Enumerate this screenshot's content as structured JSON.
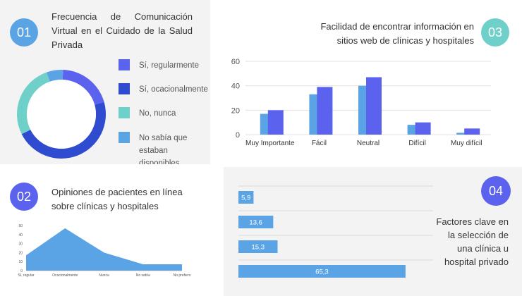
{
  "colors": {
    "blue_dark": "#2f4bd0",
    "blue_mid": "#5a62ee",
    "blue_light": "#5aa4e6",
    "teal": "#6fd0c9",
    "badge_blue": "#5aa4e6",
    "badge_indigo": "#5a62ee",
    "badge_teal": "#6fd0c9"
  },
  "panel1": {
    "badge": "01",
    "title": "Frecuencia de Comunicación Virtual en el Cuidado de la Salud Privada"
  },
  "panel2": {
    "badge": "02",
    "title": "Opiniones de pacientes en línea sobre clínicas y hospitales"
  },
  "panel3": {
    "badge": "03",
    "title": "Facilidad de encontrar información en sitios web de clínicas y hospitales"
  },
  "panel4": {
    "badge": "04",
    "title": "Factores clave en la selección de una clínica u hospital privado"
  },
  "chart_data": [
    {
      "type": "pie",
      "donut": true,
      "slices": [
        {
          "label": "Sí, regularmente",
          "value": 20,
          "color": "#5a62ee"
        },
        {
          "label": "Sí, ocacionalmente",
          "value": 47,
          "color": "#2f4bd0"
        },
        {
          "label": "No, nunca",
          "value": 27,
          "color": "#6fd0c9"
        },
        {
          "label": "No sabía que estaban disponibles",
          "value": 6,
          "color": "#5aa4e6"
        }
      ],
      "legend": "right"
    },
    {
      "type": "area",
      "categories": [
        "Sí, regular",
        "Ocacionalmente",
        "Nunca",
        "No sabía",
        "No prefiero"
      ],
      "values": [
        17,
        47,
        20,
        7,
        7
      ],
      "yticks": [
        "0",
        "10",
        "20",
        "30",
        "40",
        "50"
      ],
      "ylim": [
        0,
        50
      ],
      "color": "#5aa4e6"
    },
    {
      "type": "bar",
      "categories": [
        "Muy Importante",
        "Fácil",
        "Neutral",
        "Difícil",
        "Muy difícil"
      ],
      "series": [
        {
          "values": [
            17,
            33,
            40,
            8,
            1.5
          ],
          "color": "#5aa4e6"
        },
        {
          "values": [
            20,
            39,
            47,
            10,
            5
          ],
          "color": "#5a62ee"
        }
      ],
      "yticks": [
        "0",
        "20",
        "40",
        "60"
      ],
      "ylim": [
        0,
        60
      ],
      "grid": true
    },
    {
      "type": "bar",
      "orientation": "horizontal",
      "values": [
        5.9,
        13.6,
        15.3,
        65.3
      ],
      "labels": [
        "5,9",
        "13,6",
        "15,3",
        "65,3"
      ],
      "xlim": [
        0,
        70
      ],
      "color": "#5aa4e6",
      "grid": true
    }
  ]
}
